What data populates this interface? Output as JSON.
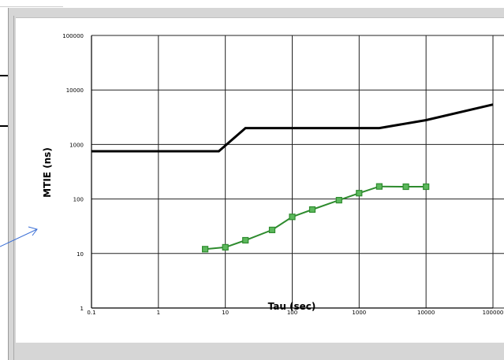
{
  "chart_data": {
    "type": "line",
    "xscale": "log",
    "yscale": "log",
    "xlim": [
      0.1,
      100000
    ],
    "ylim": [
      1,
      100000
    ],
    "xlabel": "Tau (sec)",
    "ylabel": "MTIE (ns)",
    "x_ticks": [
      "0.1",
      "1",
      "10",
      "100",
      "1000",
      "10000",
      "100000"
    ],
    "y_ticks": [
      "1",
      "10",
      "100",
      "1000",
      "10000",
      "100000"
    ],
    "grid": true,
    "series": [
      {
        "color": "#000000",
        "marker": "none",
        "points": [
          [
            0.1,
            750
          ],
          [
            8,
            750
          ],
          [
            20,
            2000
          ],
          [
            2000,
            2000
          ],
          [
            10000,
            2800
          ],
          [
            100000,
            5400
          ]
        ]
      },
      {
        "color": "#2e8b2e",
        "marker": "square",
        "points": [
          [
            5,
            12
          ],
          [
            10,
            13
          ],
          [
            20,
            17.5
          ],
          [
            50,
            27
          ],
          [
            100,
            47
          ],
          [
            200,
            64
          ],
          [
            500,
            95
          ],
          [
            1000,
            128
          ],
          [
            2000,
            170
          ],
          [
            5000,
            168
          ],
          [
            10000,
            168
          ]
        ]
      }
    ]
  },
  "colors": {
    "marker_fill": "#5cb85c",
    "annotation_arrow": "#3b6fd6"
  }
}
